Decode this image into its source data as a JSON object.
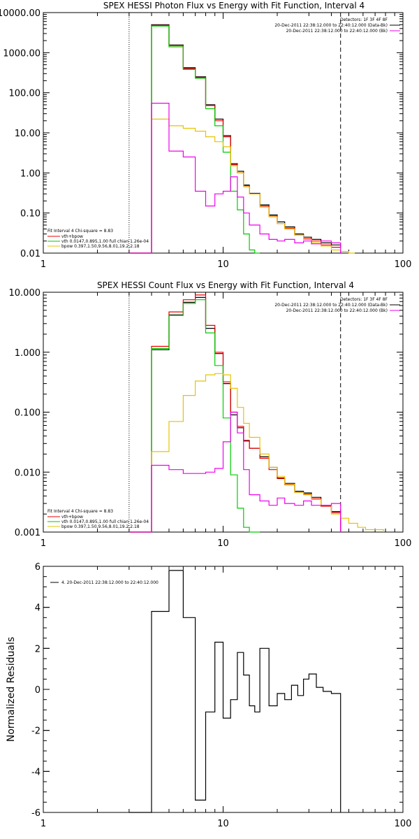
{
  "colors": {
    "data": "#000000",
    "model": "#ee0000",
    "vth": "#00cc00",
    "bpow": "#e6c400",
    "bk": "#ee00ee"
  },
  "chart_data": [
    {
      "type": "line",
      "title": "SPEX HESSI Photon Flux vs Energy with Fit Function, Interval 4",
      "xlabel": "",
      "ylabel": "",
      "xscale": "log",
      "yscale": "log",
      "xlim": [
        1,
        100
      ],
      "ylim": [
        0.01,
        10000
      ],
      "xtick_labels": [
        "1",
        "10",
        "100"
      ],
      "ytick_labels": [
        "10000.00",
        "1000.00",
        "100.00",
        "10.00",
        "1.00",
        "0.10",
        "0.01"
      ],
      "vlines": {
        "dotted": 3,
        "dashed": 45
      },
      "info": [
        "Detectors: 1F 3F 4F 8F",
        "20-Dec-2011 22:38:12.000 to 22:40:12.000 (Data-Bk)",
        "20-Dec-2011 22:38:12.000 to 22:40:12.000 (Bk)"
      ],
      "fit_legend": [
        "Fit Interval  4    Chi-square = 8.83",
        "vth+bpow",
        "vth 0.0147,0.895,1.00   full chian 1.26e-04",
        "bpow 0.397,1.50,9.56,8.01,19.2,2.18"
      ],
      "series": [
        {
          "name": "20-Dec-2011 22:38:12.000 to 22:40:12.000 (Data-Bk)",
          "color": "#000000",
          "x": [
            3,
            4,
            5,
            6,
            7,
            8,
            9,
            10,
            11,
            12,
            13,
            14,
            16,
            18,
            20,
            22,
            25,
            28,
            31,
            35,
            40,
            45
          ],
          "y": [
            0.01,
            5000,
            1550,
            420,
            250,
            50,
            22,
            8.5,
            1.7,
            1.1,
            0.5,
            0.31,
            0.16,
            0.09,
            0.06,
            0.045,
            0.03,
            0.025,
            0.022,
            0.018,
            0.016,
            0.016
          ]
        },
        {
          "name": "vth+bpow",
          "color": "#ee0000",
          "x": [
            3,
            4,
            5,
            6,
            7,
            8,
            9,
            10,
            11,
            12,
            13,
            14,
            16,
            18,
            20,
            22,
            25,
            28,
            31,
            35,
            40,
            45
          ],
          "y": [
            0.01,
            4800,
            1500,
            400,
            240,
            48,
            20,
            8,
            1.6,
            1.0,
            0.48,
            0.3,
            0.15,
            0.085,
            0.055,
            0.042,
            0.028,
            0.023,
            0.02,
            0.016,
            0.014,
            0.014
          ]
        },
        {
          "name": "vth",
          "color": "#00cc00",
          "x": [
            3,
            4,
            5,
            6,
            7,
            8,
            9,
            10,
            11,
            12,
            13,
            14,
            15,
            16
          ],
          "y": [
            0.01,
            4600,
            1400,
            380,
            230,
            40,
            15,
            3.3,
            0.35,
            0.12,
            0.03,
            0.012,
            0.01,
            0.01
          ]
        },
        {
          "name": "bpow",
          "color": "#e6c400",
          "x": [
            3,
            4,
            5,
            6,
            7,
            8,
            9,
            10,
            11,
            12,
            13,
            14,
            16,
            18,
            20,
            22,
            25,
            28,
            31,
            35,
            40,
            45,
            50,
            54
          ],
          "y": [
            0.01,
            22,
            15,
            13,
            11,
            8,
            6,
            4.5,
            1.5,
            1.0,
            0.45,
            0.3,
            0.14,
            0.08,
            0.055,
            0.04,
            0.028,
            0.022,
            0.018,
            0.015,
            0.012,
            0.011,
            0.01,
            0.01
          ]
        },
        {
          "name": "20-Dec-2011 22:38:12.000 to 22:40:12.000 (Bk)",
          "color": "#ee00ee",
          "x": [
            3,
            4,
            5,
            6,
            7,
            8,
            9,
            10,
            11,
            12,
            13,
            14,
            16,
            18,
            20,
            22,
            25,
            28,
            31,
            35,
            40,
            45
          ],
          "y": [
            0.01,
            55,
            3.5,
            2.5,
            0.35,
            0.15,
            0.3,
            0.35,
            0.8,
            0.25,
            0.1,
            0.05,
            0.03,
            0.022,
            0.02,
            0.022,
            0.018,
            0.02,
            0.017,
            0.02,
            0.018,
            0.01
          ]
        }
      ]
    },
    {
      "type": "line",
      "title": "SPEX HESSI Count Flux vs Energy with Fit Function, Interval 4",
      "xlabel": "",
      "ylabel": "",
      "xscale": "log",
      "yscale": "log",
      "xlim": [
        1,
        100
      ],
      "ylim": [
        0.001,
        10
      ],
      "xtick_labels": [
        "1",
        "10",
        "100"
      ],
      "ytick_labels": [
        "10.000",
        "1.000",
        "0.100",
        "0.010",
        "0.001"
      ],
      "vlines": {
        "dotted": 3,
        "dashed": 45
      },
      "info": [
        "Detectors: 1F 3F 4F 8F",
        "20-Dec-2011 22:38:12.000 to 22:40:12.000 (Data-Bk)",
        "20-Dec-2011 22:38:12.000 to 22:40:12.000 (Bk)"
      ],
      "fit_legend": [
        "Fit Interval  4    Chi-square = 8.83",
        "vth+bpow",
        "vth 0.0147,0.895,1.00   full chian 1.26e-04",
        "bpow 0.397,1.50,9.56,8.01,19.2,2.18"
      ],
      "series": [
        {
          "name": "20-Dec-2011 22:38:12.000 to 22:40:12.000 (Data-Bk)",
          "color": "#000000",
          "x": [
            3,
            4,
            5,
            6,
            7,
            8,
            9,
            10,
            11,
            12,
            13,
            14,
            16,
            18,
            20,
            22,
            25,
            28,
            31,
            35,
            40,
            45
          ],
          "y": [
            0.001,
            1.1,
            4.2,
            6.8,
            8.2,
            2.5,
            0.95,
            0.3,
            0.09,
            0.055,
            0.033,
            0.025,
            0.018,
            0.012,
            0.008,
            0.0065,
            0.0048,
            0.0045,
            0.0038,
            0.0028,
            0.0022,
            0.001
          ]
        },
        {
          "name": "vth+bpow",
          "color": "#ee0000",
          "x": [
            3,
            4,
            5,
            6,
            7,
            8,
            9,
            10,
            11,
            12,
            13,
            14,
            16,
            18,
            20,
            22,
            25,
            28,
            31,
            35,
            40,
            45
          ],
          "y": [
            0.001,
            1.25,
            4.7,
            7.5,
            9.0,
            2.8,
            1.0,
            0.32,
            0.1,
            0.058,
            0.034,
            0.025,
            0.017,
            0.011,
            0.0078,
            0.0062,
            0.0046,
            0.0043,
            0.0036,
            0.0027,
            0.0021,
            0.001
          ]
        },
        {
          "name": "vth",
          "color": "#00cc00",
          "x": [
            3,
            4,
            5,
            6,
            7,
            8,
            9,
            10,
            11,
            12,
            13,
            14,
            15,
            16
          ],
          "y": [
            0.001,
            1.15,
            4.1,
            6.5,
            7.5,
            2.1,
            0.6,
            0.08,
            0.009,
            0.0025,
            0.0012,
            0.001,
            0.001,
            0.001
          ]
        },
        {
          "name": "bpow",
          "color": "#e6c400",
          "x": [
            3,
            4,
            5,
            6,
            7,
            8,
            9,
            10,
            11,
            12,
            13,
            14,
            16,
            18,
            20,
            22,
            25,
            28,
            31,
            35,
            40,
            45,
            50,
            56,
            62,
            70,
            78
          ],
          "y": [
            0.001,
            0.022,
            0.07,
            0.19,
            0.33,
            0.42,
            0.44,
            0.42,
            0.25,
            0.12,
            0.065,
            0.038,
            0.02,
            0.012,
            0.0085,
            0.0063,
            0.0046,
            0.0042,
            0.0035,
            0.0028,
            0.002,
            0.0017,
            0.0014,
            0.0012,
            0.0011,
            0.0011,
            0.001
          ]
        },
        {
          "name": "20-Dec-2011 22:38:12.000 to 22:40:12.000 (Bk)",
          "color": "#ee00ee",
          "x": [
            3,
            4,
            5,
            6,
            7,
            8,
            9,
            10,
            11,
            12,
            13,
            14,
            16,
            18,
            20,
            22,
            25,
            28,
            31,
            35,
            40,
            45
          ],
          "y": [
            0.001,
            0.013,
            0.011,
            0.0095,
            0.0095,
            0.01,
            0.0115,
            0.032,
            0.1,
            0.045,
            0.011,
            0.0042,
            0.0033,
            0.0028,
            0.0037,
            0.003,
            0.0028,
            0.0033,
            0.0028,
            0.0028,
            0.003,
            0.001
          ]
        }
      ]
    },
    {
      "type": "line",
      "title": "",
      "xlabel": "",
      "ylabel": "Normalized  Residuals",
      "xscale": "log",
      "yscale": "linear",
      "xlim": [
        1,
        100
      ],
      "ylim": [
        -6,
        6
      ],
      "xtick_labels": [
        "1",
        "10",
        "100"
      ],
      "ytick_labels": [
        "6",
        "4",
        "2",
        "0",
        "-2",
        "-4",
        "-6"
      ],
      "legend": "4. 20-Dec-2011 22:38:12.000 to 22:40:12.000",
      "series": [
        {
          "name": "4. 20-Dec-2011 22:38:12.000 to 22:40:12.000",
          "color": "#000000",
          "x": [
            3,
            4,
            5,
            6,
            7,
            8,
            9,
            10,
            11,
            12,
            13,
            14,
            15,
            16,
            18,
            20,
            22,
            24,
            26,
            28,
            30,
            33,
            36,
            40,
            45
          ],
          "y": [
            -6,
            3.8,
            5.8,
            3.5,
            -5.4,
            -1.1,
            2.3,
            -1.4,
            -0.5,
            1.8,
            0.7,
            -0.8,
            -1.1,
            2.0,
            -0.8,
            -0.2,
            -0.5,
            0.2,
            -0.3,
            0.5,
            0.75,
            0.1,
            -0.1,
            -0.2,
            -6
          ]
        }
      ]
    }
  ]
}
